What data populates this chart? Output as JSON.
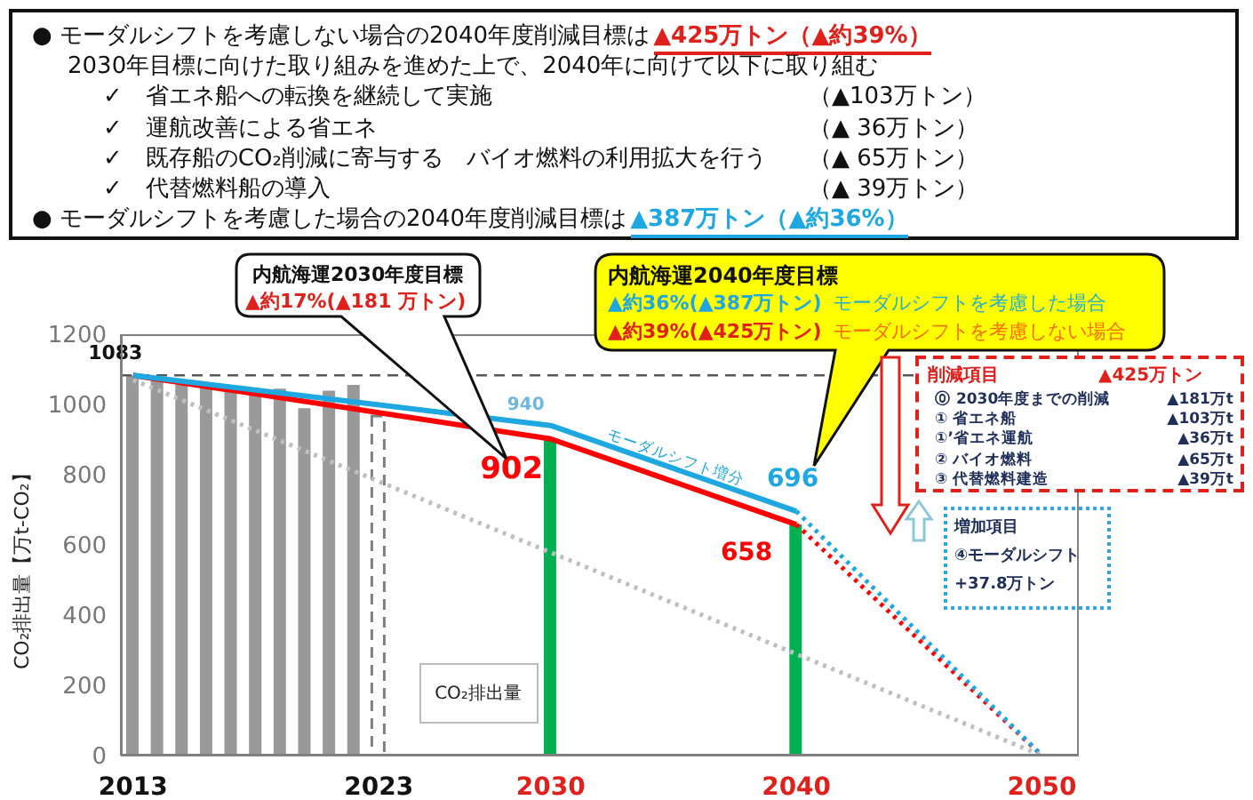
{
  "chart_data": {
    "type": "line",
    "ylabel": "CO₂排出量【万t-CO₂】",
    "xlim": [
      2012.5,
      2051.5
    ],
    "xticks": [
      2013,
      2023,
      2030,
      2040,
      2050
    ],
    "ylim": [
      0,
      1200
    ],
    "yticks": [
      0,
      200,
      400,
      600,
      800,
      1000,
      1200
    ],
    "series": [
      {
        "type": "bar",
        "color": "#999999",
        "x": [
          2013,
          2014,
          2015,
          2016,
          2017,
          2018,
          2019,
          2020,
          2021,
          2022
        ],
        "values": [
          1083,
          1077,
          1056,
          1048,
          1039,
          1031,
          1045,
          989,
          1039,
          1056
        ]
      },
      {
        "type": "bar",
        "color": "#7f7f7f",
        "line_style": "dashed",
        "x": [
          2023
        ],
        "values": [
          967
        ]
      },
      {
        "type": "bar",
        "color": "#00b050",
        "x": [
          2030,
          2040
        ],
        "values": [
          902,
          658
        ]
      },
      {
        "color": "#ff0000",
        "line_style": "solid",
        "x": [
          2013,
          2030,
          2040
        ],
        "values": [
          1083,
          902,
          658
        ],
        "value_labels": [
          "1083",
          "902",
          "658"
        ]
      },
      {
        "color": "#ff0000",
        "line_style": "dotted",
        "x": [
          2040,
          2050
        ],
        "values": [
          658,
          0
        ]
      },
      {
        "color": "#1fa7e1",
        "line_style": "solid",
        "x": [
          2013,
          2030,
          2040
        ],
        "values": [
          1083,
          940,
          696
        ],
        "value_labels": [
          null,
          "940",
          "696"
        ]
      },
      {
        "color": "#1fa7e1",
        "line_style": "dotted",
        "x": [
          2040,
          2050
        ],
        "values": [
          696,
          0
        ]
      },
      {
        "color": "#bfbfbf",
        "line_style": "dotted",
        "x": [
          2013,
          2050
        ],
        "values": [
          1070,
          0
        ]
      }
    ],
    "ref_lines": [
      {
        "axis": "y",
        "value": 1083,
        "color": "#595959",
        "line_style": "dashed"
      }
    ],
    "annotations": [
      "● モーダルシフトを考慮しない場合の2040年度削減目標は",
      "▲425万トン（▲約39%）",
      "2030年目標に向けた取り組みを進めた上で、2040年に向けて以下に取り組む",
      "✓　省エネ船への転換を継続して実施",
      "（▲103万トン）",
      "✓　運航改善による省エネ",
      "（▲ 36万トン）",
      "✓　既存船のCO₂削減に寄与する　バイオ燃料の利用拡大を行う",
      "（▲ 65万トン）",
      "✓　代替燃料船の導入",
      "（▲ 39万トン）",
      "● モーダルシフトを考慮した場合の2040年度削減目標は",
      "▲387万トン（▲約36%）",
      "内航海運2030年度目標",
      "▲約17%(▲181 万トン)",
      "内航海運2040年度目標",
      "▲約36%(▲387万トン)",
      "モーダルシフトを考慮した場合",
      "▲約39%(▲425万トン)",
      "モーダルシフトを考慮しない場合",
      "削減項目",
      "▲425万トン",
      "⓪ 2030年度までの削減",
      "▲181万t",
      "① 省エネ船",
      "▲103万t",
      "①’省エネ運航",
      "▲36万t",
      "② バイオ燃料",
      "▲65万t",
      "③ 代替燃料建造",
      "▲39万t",
      "増加項目",
      "④モーダルシフト",
      "+37.8万トン",
      "モーダルシフト増分",
      "CO₂排出量"
    ]
  }
}
